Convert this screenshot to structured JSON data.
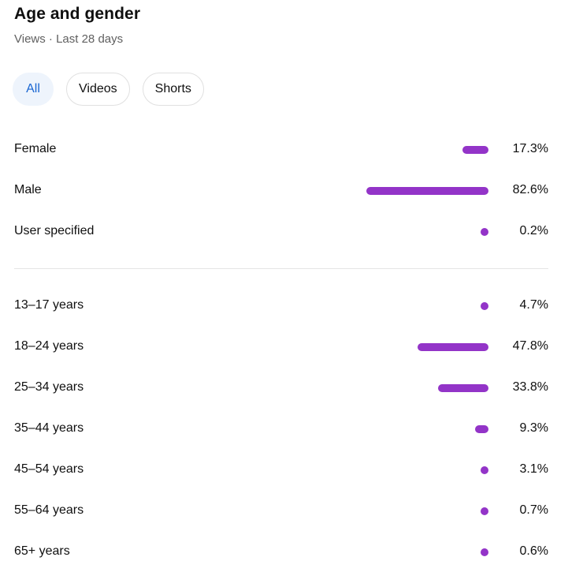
{
  "header": {
    "title": "Age and gender",
    "subtitle": "Views · Last 28 days"
  },
  "filters": [
    {
      "label": "All",
      "selected": true
    },
    {
      "label": "Videos",
      "selected": false
    },
    {
      "label": "Shorts",
      "selected": false
    }
  ],
  "colors": {
    "bar": "#9334c8",
    "chip_active_bg": "#eef4fc",
    "chip_active_text": "#1a66d2"
  },
  "gender": [
    {
      "label": "Female",
      "value_text": "17.3%",
      "value": 17.3
    },
    {
      "label": "Male",
      "value_text": "82.6%",
      "value": 82.6
    },
    {
      "label": "User specified",
      "value_text": "0.2%",
      "value": 0.2
    }
  ],
  "age": [
    {
      "label": "13–17 years",
      "value_text": "4.7%",
      "value": 4.7
    },
    {
      "label": "18–24 years",
      "value_text": "47.8%",
      "value": 47.8
    },
    {
      "label": "25–34 years",
      "value_text": "33.8%",
      "value": 33.8
    },
    {
      "label": "35–44 years",
      "value_text": "9.3%",
      "value": 9.3
    },
    {
      "label": "45–54 years",
      "value_text": "3.1%",
      "value": 3.1
    },
    {
      "label": "55–64 years",
      "value_text": "0.7%",
      "value": 0.7
    },
    {
      "label": "65+ years",
      "value_text": "0.6%",
      "value": 0.6
    }
  ]
}
